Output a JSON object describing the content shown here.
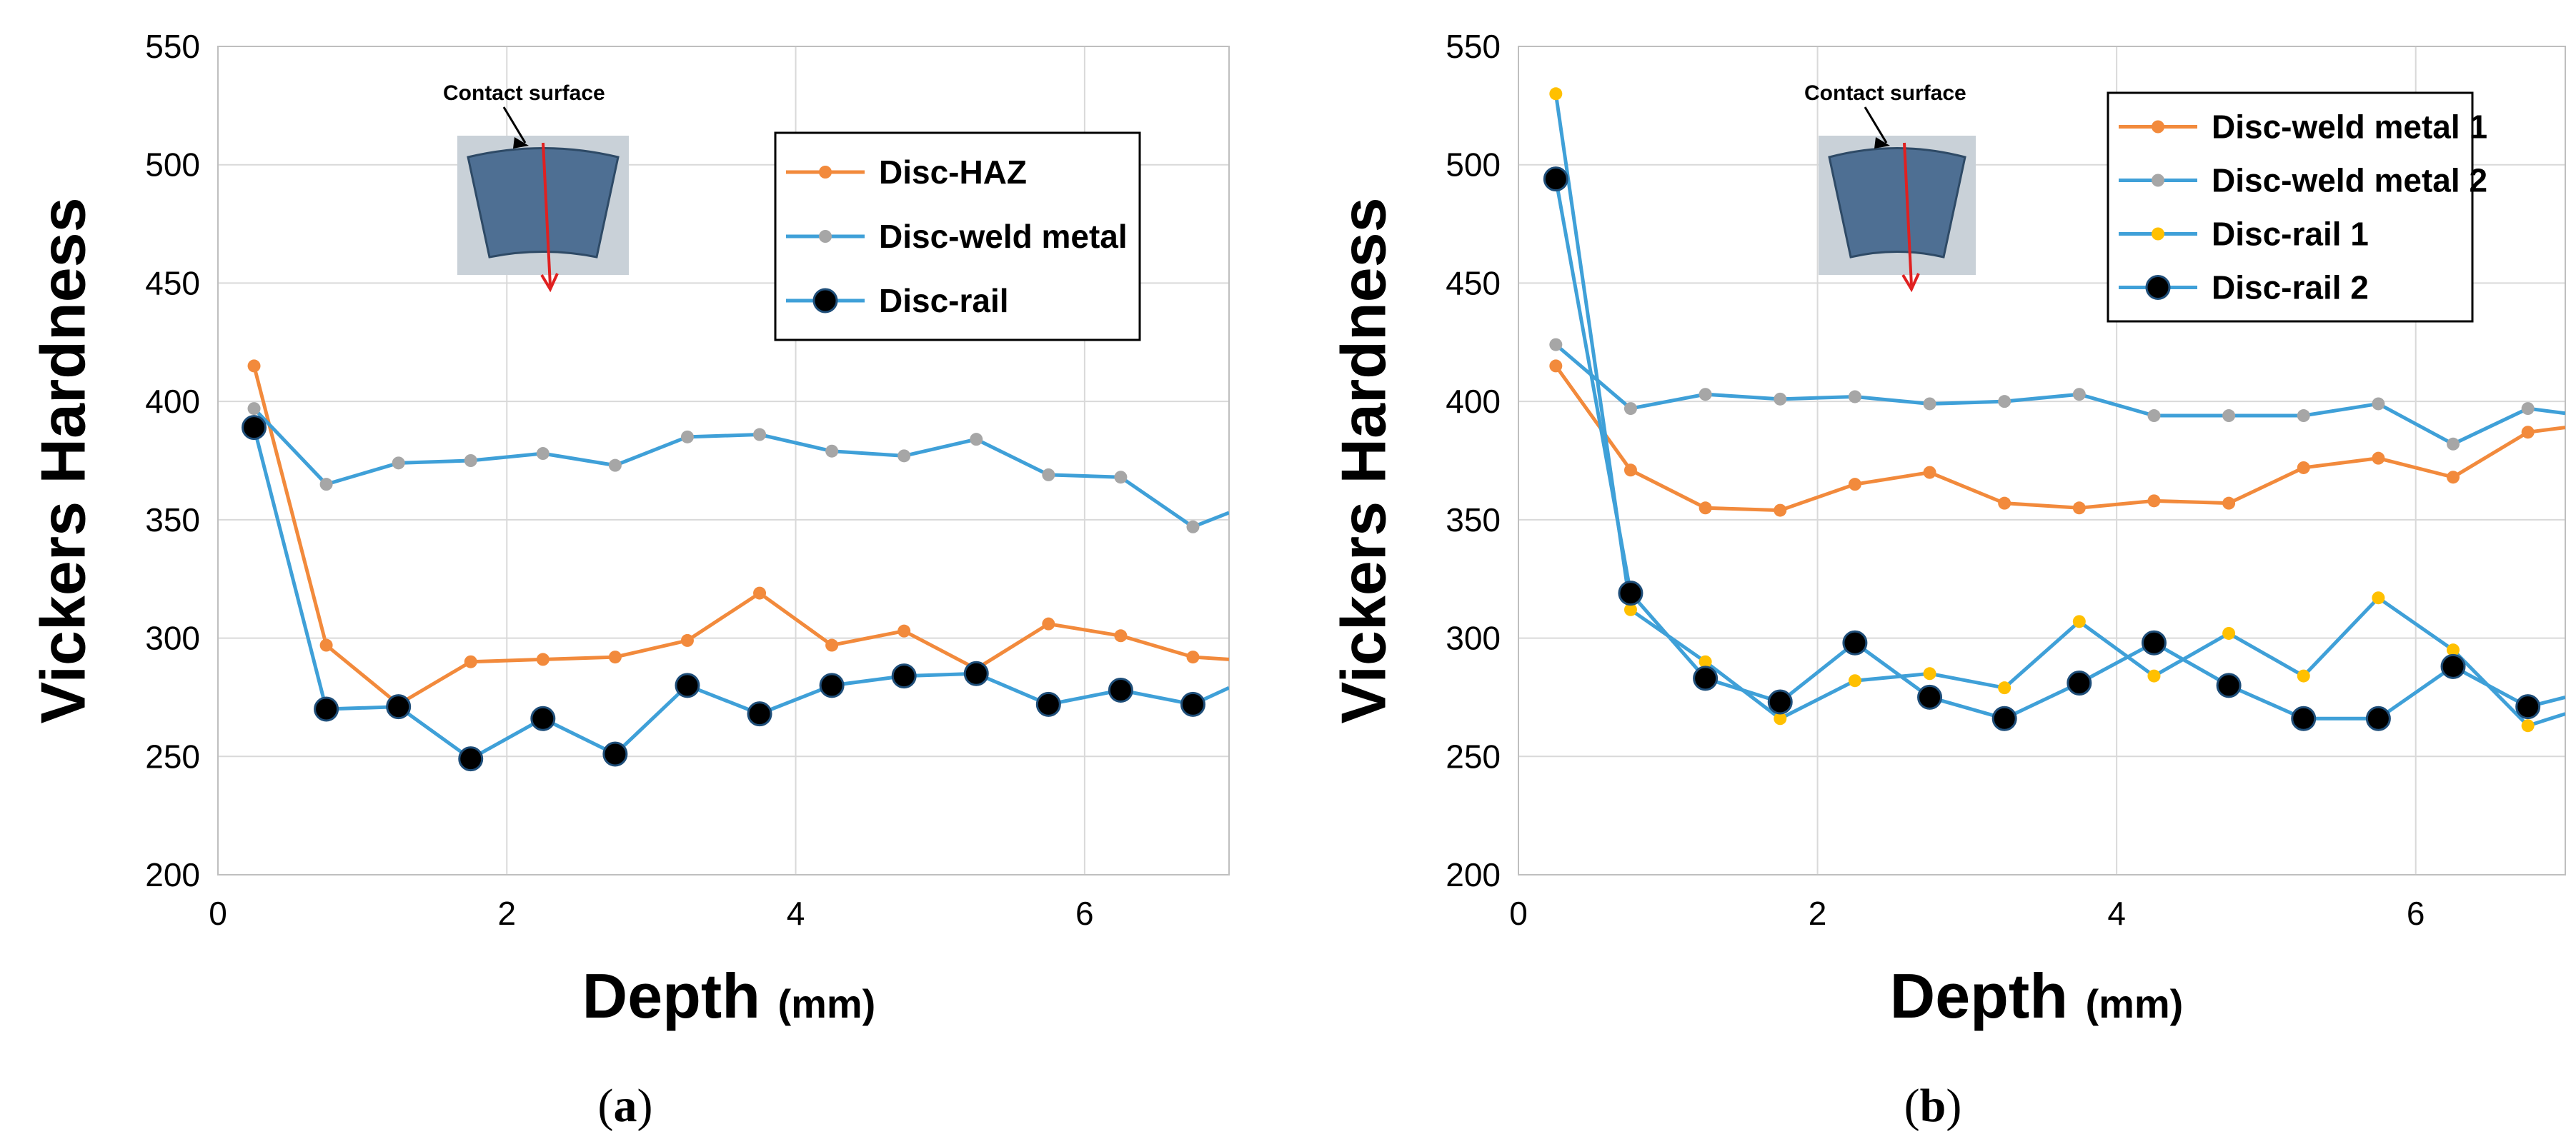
{
  "panels": [
    {
      "caption_open": "(",
      "caption_letter": "a",
      "caption_close": ")",
      "inset_label": "Contact surface",
      "chart_data": {
        "type": "line",
        "xlabel": "Depth",
        "xlabel_unit": "(mm)",
        "ylabel": "Vickers Hardness",
        "xlim": [
          0,
          7
        ],
        "ylim": [
          200,
          550
        ],
        "xticks": [
          0,
          2,
          4,
          6
        ],
        "yticks": [
          200,
          250,
          300,
          350,
          400,
          450,
          500,
          550
        ],
        "grid": true,
        "legend_position": "top-right",
        "series": [
          {
            "name": "Disc-HAZ",
            "line_color": "#F28A3C",
            "marker_color": "#F28A3C",
            "marker": "small",
            "x": [
              0.25,
              0.75,
              1.25,
              1.75,
              2.25,
              2.75,
              3.25,
              3.75,
              4.25,
              4.75,
              5.25,
              5.75,
              6.25,
              6.75,
              7.0
            ],
            "y": [
              415,
              297,
              272,
              290,
              291,
              292,
              299,
              319,
              297,
              303,
              287,
              306,
              301,
              292,
              291
            ]
          },
          {
            "name": "Disc-weld metal",
            "line_color": "#3FA0D8",
            "marker_color": "#A6A6A6",
            "marker": "small",
            "x": [
              0.25,
              0.75,
              1.25,
              1.75,
              2.25,
              2.75,
              3.25,
              3.75,
              4.25,
              4.75,
              5.25,
              5.75,
              6.25,
              6.75,
              7.0
            ],
            "y": [
              397,
              365,
              374,
              375,
              378,
              373,
              385,
              386,
              379,
              377,
              384,
              369,
              368,
              347,
              353
            ]
          },
          {
            "name": "Disc-rail",
            "line_color": "#3FA0D8",
            "marker_color": "#000000",
            "marker": "large",
            "x": [
              0.25,
              0.75,
              1.25,
              1.75,
              2.25,
              2.75,
              3.25,
              3.75,
              4.25,
              4.75,
              5.25,
              5.75,
              6.25,
              6.75,
              7.0
            ],
            "y": [
              389,
              270,
              271,
              249,
              266,
              251,
              280,
              268,
              280,
              284,
              285,
              272,
              278,
              272,
              279
            ]
          }
        ]
      }
    },
    {
      "caption_open": "(",
      "caption_letter": "b",
      "caption_close": ")",
      "inset_label": "Contact surface",
      "chart_data": {
        "type": "line",
        "xlabel": "Depth",
        "xlabel_unit": "(mm)",
        "ylabel": "Vickers Hardness",
        "xlim": [
          0,
          7
        ],
        "ylim": [
          200,
          550
        ],
        "xticks": [
          0,
          2,
          4,
          6
        ],
        "yticks": [
          200,
          250,
          300,
          350,
          400,
          450,
          500,
          550
        ],
        "grid": true,
        "legend_position": "top-right",
        "series": [
          {
            "name": "Disc-weld metal 1",
            "line_color": "#F28A3C",
            "marker_color": "#F28A3C",
            "marker": "small",
            "x": [
              0.25,
              0.75,
              1.25,
              1.75,
              2.25,
              2.75,
              3.25,
              3.75,
              4.25,
              4.75,
              5.25,
              5.75,
              6.25,
              6.75,
              7.0
            ],
            "y": [
              415,
              371,
              355,
              354,
              365,
              370,
              357,
              355,
              358,
              357,
              372,
              376,
              368,
              387,
              389
            ]
          },
          {
            "name": "Disc-weld metal 2",
            "line_color": "#3FA0D8",
            "marker_color": "#A6A6A6",
            "marker": "small",
            "x": [
              0.25,
              0.75,
              1.25,
              1.75,
              2.25,
              2.75,
              3.25,
              3.75,
              4.25,
              4.75,
              5.25,
              5.75,
              6.25,
              6.75,
              7.0
            ],
            "y": [
              424,
              397,
              403,
              401,
              402,
              399,
              400,
              403,
              394,
              394,
              394,
              399,
              382,
              397,
              395
            ]
          },
          {
            "name": "Disc-rail 1",
            "line_color": "#3FA0D8",
            "marker_color": "#FFC000",
            "marker": "small",
            "x": [
              0.25,
              0.75,
              1.25,
              1.75,
              2.25,
              2.75,
              3.25,
              3.75,
              4.25,
              4.75,
              5.25,
              5.75,
              6.25,
              6.75,
              7.0
            ],
            "y": [
              530,
              312,
              290,
              266,
              282,
              285,
              279,
              307,
              284,
              302,
              284,
              317,
              295,
              263,
              268
            ]
          },
          {
            "name": "Disc-rail 2",
            "line_color": "#3FA0D8",
            "marker_color": "#000000",
            "marker": "large",
            "x": [
              0.25,
              0.75,
              1.25,
              1.75,
              2.25,
              2.75,
              3.25,
              3.75,
              4.25,
              4.75,
              5.25,
              5.75,
              6.25,
              6.75,
              7.0
            ],
            "y": [
              494,
              319,
              283,
              273,
              298,
              275,
              266,
              281,
              298,
              280,
              266,
              266,
              288,
              271,
              275
            ]
          }
        ]
      }
    }
  ]
}
